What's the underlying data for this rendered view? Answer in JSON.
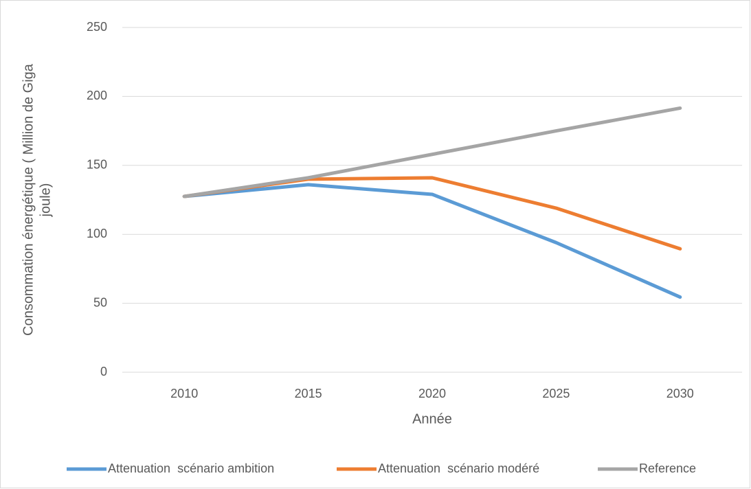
{
  "chart_data": {
    "type": "line",
    "x_label": "Année",
    "y_label": [
      "Consommation énergétique ( Million de Giga",
      "joule)"
    ],
    "categories": [
      "2010",
      "2015",
      "2020",
      "2025",
      "2030"
    ],
    "series": [
      {
        "name": "Attenuation  scénario ambition",
        "color": "#5b9bd5",
        "values": [
          127.5,
          136,
          129,
          94,
          54.5
        ]
      },
      {
        "name": "Attenuation  scénario modéré",
        "color": "#ed7d31",
        "values": [
          127.5,
          140,
          141,
          119,
          89.5
        ]
      },
      {
        "name": "Reference",
        "color": "#a5a5a5",
        "values": [
          127.5,
          141,
          158,
          175,
          191.5
        ]
      }
    ],
    "ylim": [
      0,
      250
    ],
    "yticks": [
      0,
      50,
      100,
      150,
      200,
      250
    ],
    "grid": true,
    "legend": "bottom"
  }
}
